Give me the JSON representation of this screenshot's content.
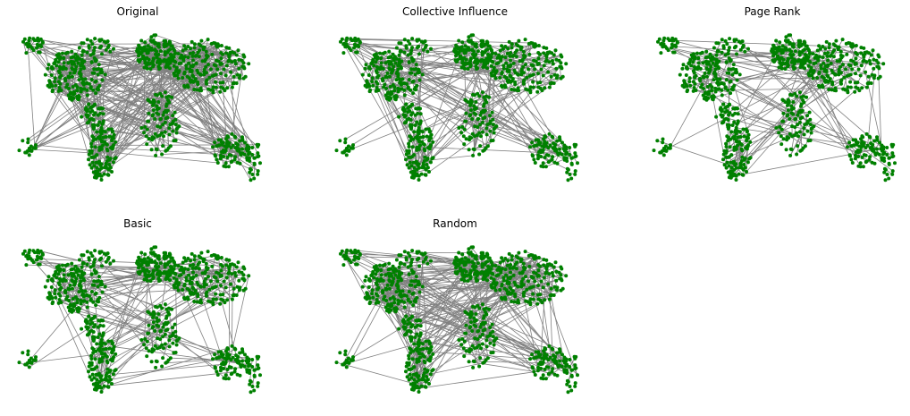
{
  "panels": [
    {
      "title": "Original",
      "edge_density": 1.0
    },
    {
      "title": "Collective Influence",
      "edge_density": 0.55
    },
    {
      "title": "Page Rank",
      "edge_density": 0.4
    },
    {
      "title": "Basic",
      "edge_density": 0.5
    },
    {
      "title": "Random",
      "edge_density": 0.85
    }
  ],
  "colors": {
    "node": "#008000",
    "edge": "#808080",
    "background": "#ffffff"
  }
}
